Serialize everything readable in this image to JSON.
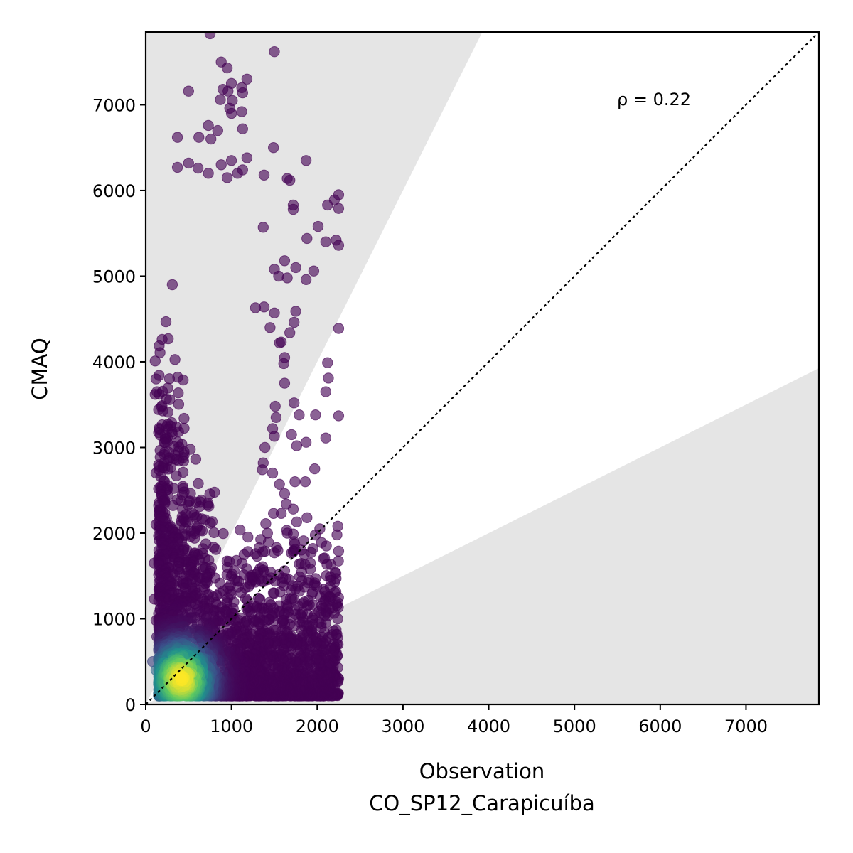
{
  "chart_data": {
    "type": "scatter",
    "xlabel": "Observation",
    "xlabel_line2": "CO_SP12_Carapicuíba",
    "ylabel": "CMAQ",
    "xlim": [
      0,
      7850
    ],
    "ylim": [
      0,
      7850
    ],
    "xticks": [
      0,
      1000,
      2000,
      3000,
      4000,
      5000,
      6000,
      7000
    ],
    "yticks": [
      0,
      1000,
      2000,
      3000,
      4000,
      5000,
      6000,
      7000
    ],
    "x_tick_labels": [
      "0",
      "1000",
      "2000",
      "3000",
      "4000",
      "5000",
      "6000",
      "7000"
    ],
    "y_tick_labels": [
      "0",
      "1000",
      "2000",
      "3000",
      "4000",
      "5000",
      "6000",
      "7000"
    ],
    "annotation": "ρ = 0.22",
    "reference_line": "1:1",
    "shaded_region": "outside factor-of-2 band",
    "colormap": "viridis (point density)",
    "colors": {
      "shade": "#e5e5e5",
      "low_density": "#440154",
      "high_density": "#fde725"
    },
    "points": [
      [
        750,
        7830
      ],
      [
        1500,
        7620
      ],
      [
        880,
        7500
      ],
      [
        950,
        7430
      ],
      [
        1180,
        7300
      ],
      [
        500,
        7160
      ],
      [
        1000,
        7250
      ],
      [
        1120,
        7200
      ],
      [
        900,
        7180
      ],
      [
        960,
        7160
      ],
      [
        1010,
        7050
      ],
      [
        1130,
        7140
      ],
      [
        870,
        7060
      ],
      [
        980,
        6960
      ],
      [
        1000,
        6900
      ],
      [
        1120,
        6920
      ],
      [
        730,
        6760
      ],
      [
        370,
        6620
      ],
      [
        620,
        6620
      ],
      [
        760,
        6600
      ],
      [
        840,
        6700
      ],
      [
        1130,
        6720
      ],
      [
        1490,
        6500
      ],
      [
        1000,
        6350
      ],
      [
        1180,
        6380
      ],
      [
        1870,
        6350
      ],
      [
        500,
        6320
      ],
      [
        610,
        6260
      ],
      [
        880,
        6300
      ],
      [
        370,
        6270
      ],
      [
        730,
        6200
      ],
      [
        950,
        6150
      ],
      [
        1070,
        6200
      ],
      [
        1130,
        6240
      ],
      [
        1380,
        6180
      ],
      [
        1650,
        6140
      ],
      [
        1680,
        6120
      ],
      [
        2250,
        5950
      ],
      [
        2200,
        5890
      ],
      [
        2250,
        5790
      ],
      [
        2120,
        5830
      ],
      [
        1720,
        5830
      ],
      [
        1720,
        5780
      ],
      [
        2010,
        5580
      ],
      [
        1370,
        5570
      ],
      [
        2220,
        5420
      ],
      [
        2250,
        5360
      ],
      [
        2100,
        5400
      ],
      [
        1880,
        5440
      ],
      [
        1750,
        5100
      ],
      [
        1960,
        5060
      ],
      [
        1870,
        4960
      ],
      [
        1550,
        5000
      ],
      [
        1650,
        4980
      ],
      [
        1500,
        5080
      ],
      [
        1620,
        5180
      ],
      [
        1280,
        4630
      ],
      [
        1380,
        4640
      ],
      [
        1500,
        4570
      ],
      [
        1750,
        4590
      ],
      [
        1730,
        4460
      ],
      [
        1450,
        4400
      ],
      [
        1680,
        4340
      ],
      [
        1560,
        4220
      ],
      [
        1580,
        4230
      ],
      [
        2250,
        4390
      ],
      [
        2120,
        3990
      ],
      [
        2130,
        3810
      ],
      [
        2100,
        3650
      ],
      [
        1620,
        4050
      ],
      [
        1620,
        3750
      ],
      [
        1610,
        3980
      ],
      [
        1730,
        3520
      ],
      [
        1510,
        3480
      ],
      [
        1790,
        3380
      ],
      [
        1980,
        3380
      ],
      [
        1520,
        3350
      ],
      [
        2250,
        3370
      ],
      [
        1480,
        3220
      ],
      [
        1500,
        3130
      ],
      [
        1700,
        3150
      ],
      [
        1760,
        3020
      ],
      [
        1870,
        3060
      ],
      [
        2100,
        3110
      ],
      [
        1390,
        3000
      ],
      [
        1370,
        2820
      ],
      [
        1970,
        2750
      ],
      [
        1360,
        2740
      ],
      [
        1480,
        2700
      ],
      [
        1740,
        2600
      ],
      [
        1860,
        2600
      ],
      [
        1560,
        2570
      ],
      [
        1620,
        2460
      ],
      [
        1640,
        2340
      ],
      [
        1720,
        2280
      ],
      [
        1880,
        2180
      ],
      [
        1760,
        2130
      ],
      [
        1490,
        2230
      ],
      [
        1580,
        2230
      ],
      [
        1400,
        2110
      ],
      [
        2030,
        2050
      ],
      [
        2240,
        2080
      ],
      [
        1650,
        2000
      ],
      [
        1420,
        2000
      ],
      [
        1720,
        1990
      ],
      [
        2230,
        1980
      ],
      [
        1840,
        1910
      ],
      [
        1730,
        1900
      ],
      [
        2050,
        1890
      ],
      [
        1950,
        1820
      ],
      [
        1720,
        1780
      ],
      [
        1500,
        1770
      ],
      [
        2250,
        1790
      ],
      [
        1920,
        1650
      ],
      [
        1790,
        1640
      ],
      [
        1920,
        1580
      ],
      [
        1620,
        1560
      ],
      [
        1980,
        1470
      ],
      [
        2220,
        1470
      ],
      [
        2150,
        1370
      ],
      [
        1850,
        1370
      ],
      [
        1940,
        1290
      ],
      [
        2240,
        1190
      ],
      [
        1830,
        1180
      ],
      [
        2050,
        1150
      ],
      [
        2130,
        1040
      ],
      [
        2240,
        1000
      ],
      [
        2100,
        950
      ],
      [
        2230,
        820
      ],
      [
        2230,
        700
      ],
      [
        2190,
        600
      ],
      [
        2240,
        430
      ],
      [
        2250,
        300
      ],
      [
        2200,
        210
      ],
      [
        80,
        500
      ],
      [
        120,
        400
      ],
      [
        100,
        1650
      ],
      [
        100,
        1230
      ],
      [
        120,
        2100
      ],
      [
        120,
        2700
      ],
      [
        130,
        3650
      ],
      [
        110,
        3620
      ],
      [
        120,
        3800
      ],
      [
        110,
        4010
      ],
      [
        120,
        980
      ],
      [
        130,
        790
      ],
      [
        200,
        520
      ],
      [
        310,
        4900
      ]
    ]
  }
}
